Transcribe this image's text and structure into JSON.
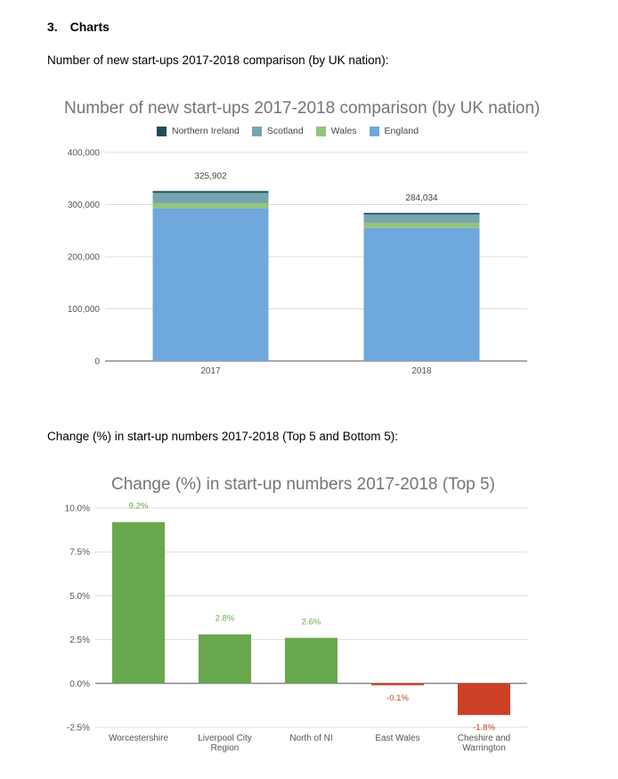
{
  "section": {
    "number": "3.",
    "title": "Charts"
  },
  "intro1": "Number of new start-ups 2017-2018 comparison (by UK nation):",
  "intro2": "Change (%) in start-up numbers 2017-2018 (Top 5 and Bottom 5):",
  "colors": {
    "northern_ireland": "#1f4e5a",
    "scotland": "#76a5af",
    "wales": "#93c47d",
    "england": "#6fa8dc",
    "positive": "#6aa84f",
    "negative": "#cc4125"
  },
  "chart_data": [
    {
      "type": "bar",
      "stacked": true,
      "title": "Number of new start-ups 2017-2018 comparison (by UK nation)",
      "categories": [
        "2017",
        "2018"
      ],
      "series": [
        {
          "name": "Northern Ireland",
          "values": [
            3500,
            3000
          ]
        },
        {
          "name": "Scotland",
          "values": [
            20000,
            16000
          ]
        },
        {
          "name": "Wales",
          "values": [
            9500,
            10000
          ]
        },
        {
          "name": "England",
          "values": [
            292902,
            255034
          ]
        }
      ],
      "totals": [
        325902,
        284034
      ],
      "total_labels": [
        "325,902",
        "284,034"
      ],
      "ylim": [
        0,
        400000
      ],
      "yticks": [
        0,
        100000,
        200000,
        300000,
        400000
      ],
      "ytick_labels": [
        "0",
        "100,000",
        "200,000",
        "300,000",
        "400,000"
      ],
      "legend_position": "top",
      "grid": true
    },
    {
      "type": "bar",
      "title": "Change (%) in start-up numbers 2017-2018 (Top 5)",
      "categories": [
        "Worcestershire",
        "Liverpool City Region",
        "North of NI",
        "East Wales",
        "Cheshire and Warrington"
      ],
      "category_lines": [
        [
          "Worcestershire"
        ],
        [
          "Liverpool City",
          "Region"
        ],
        [
          "North of NI"
        ],
        [
          "East Wales"
        ],
        [
          "Cheshire and",
          "Warrington"
        ]
      ],
      "values": [
        9.2,
        2.8,
        2.6,
        -0.1,
        -1.8
      ],
      "value_labels": [
        "9.2%",
        "2.8%",
        "2.6%",
        "-0.1%",
        "-1.8%"
      ],
      "ylim": [
        -2.5,
        10
      ],
      "yticks": [
        -2.5,
        0,
        2.5,
        5,
        7.5,
        10
      ],
      "ytick_labels": [
        "-2.5%",
        "0.0%",
        "2.5%",
        "5.0%",
        "7.5%",
        "10.0%"
      ],
      "grid": true
    }
  ]
}
